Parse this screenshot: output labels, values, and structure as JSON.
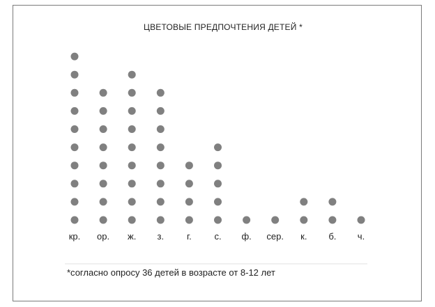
{
  "chart_data": {
    "type": "dot",
    "title": "ЦВЕТОВЫЕ ПРЕДПОЧТЕНИЯ ДЕТЕЙ *",
    "categories": [
      "кр.",
      "ор.",
      "ж.",
      "з.",
      "г.",
      "с.",
      "ф.",
      "сер.",
      "к.",
      "б.",
      "ч."
    ],
    "values": [
      10,
      8,
      9,
      8,
      4,
      5,
      1,
      1,
      2,
      2,
      1
    ],
    "dot_color": "#808080",
    "grid": false,
    "footnote": "*согласно опросу 36 детей в возрасте от 8-12 лет"
  }
}
